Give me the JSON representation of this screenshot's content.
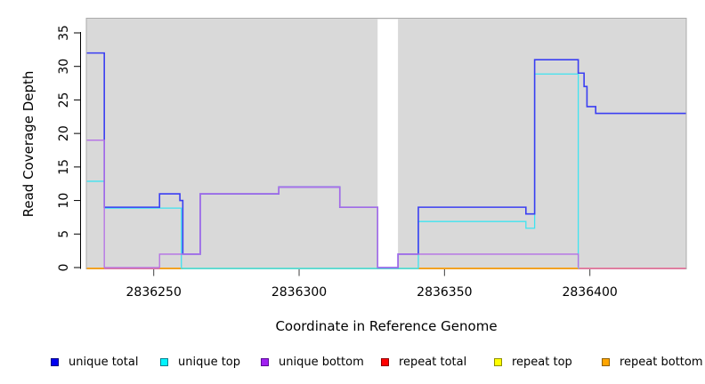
{
  "chart_data": {
    "type": "line",
    "subtype": "step-coverage-plot",
    "title": "",
    "xlabel": "Coordinate in Reference Genome",
    "ylabel": "Read Coverage Depth",
    "xlim": [
      2836227,
      2836433
    ],
    "ylim": [
      0,
      37
    ],
    "xticks": [
      2836250,
      2836300,
      2836350,
      2836400
    ],
    "yticks": [
      0,
      5,
      10,
      15,
      20,
      25,
      30,
      35
    ],
    "plot_background": "#d9d9d9",
    "plot_border_color": "#ababab",
    "masked_region": {
      "from": 2836327,
      "to": 2836334,
      "color": "#ffffff"
    },
    "series": [
      {
        "name": "unique total",
        "color": "#3a3ef2",
        "width": 1.6,
        "steps": [
          [
            2836227,
            32
          ],
          [
            2836233,
            9
          ],
          [
            2836252,
            11
          ],
          [
            2836259,
            10
          ],
          [
            2836260,
            2
          ],
          [
            2836266,
            11
          ],
          [
            2836293,
            12
          ],
          [
            2836314,
            9
          ],
          [
            2836327,
            0
          ],
          [
            2836334,
            2
          ],
          [
            2836341,
            9
          ],
          [
            2836378,
            8
          ],
          [
            2836381,
            31
          ],
          [
            2836396,
            29
          ],
          [
            2836398,
            27
          ],
          [
            2836399,
            24
          ],
          [
            2836402,
            23
          ]
        ],
        "end": 2836433
      },
      {
        "name": "unique top",
        "color": "#3fe3f0",
        "width": 1.3,
        "steps": [
          [
            2836227,
            13
          ],
          [
            2836233,
            9
          ],
          [
            2836259.5,
            0
          ],
          [
            2836341,
            7
          ],
          [
            2836378,
            6
          ],
          [
            2836381,
            29
          ],
          [
            2836396,
            0
          ]
        ],
        "end": 2836396
      },
      {
        "name": "unique bottom",
        "color": "#b46fe6",
        "width": 1.3,
        "steps": [
          [
            2836227,
            19
          ],
          [
            2836233,
            0
          ],
          [
            2836252,
            2
          ],
          [
            2836266,
            11
          ],
          [
            2836293,
            12
          ],
          [
            2836314,
            9
          ],
          [
            2836327,
            0
          ],
          [
            2836334,
            2
          ],
          [
            2836396,
            0
          ]
        ],
        "end": 2836396
      }
    ],
    "zero_line_segments": [
      {
        "series": "repeat bottom",
        "color": "#ff9d00",
        "from": 2836227,
        "to": 2836233
      },
      {
        "series": "repeat total",
        "color": "#e8709a",
        "from": 2836233,
        "to": 2836252
      },
      {
        "series": "repeat bottom",
        "color": "#ff9d00",
        "from": 2836252,
        "to": 2836260
      },
      {
        "series": "repeat top over unique top",
        "color": "#8fd48f",
        "from": 2836260,
        "to": 2836341
      },
      {
        "series": "repeat bottom",
        "color": "#ff9d00",
        "from": 2836341,
        "to": 2836396
      },
      {
        "series": "repeat total",
        "color": "#e8709a",
        "from": 2836396,
        "to": 2836433
      }
    ],
    "grid": false,
    "legend_position": "bottom"
  },
  "axis": {
    "x_title": "Coordinate in Reference Genome",
    "y_title": "Read Coverage Depth"
  },
  "legend": {
    "items": [
      {
        "label": "unique total",
        "fill": "#0000f0",
        "border": "#000080"
      },
      {
        "label": "unique top",
        "fill": "#00f5ff",
        "border": "#007f8f"
      },
      {
        "label": "unique bottom",
        "fill": "#a020f0",
        "border": "#5a0a96"
      },
      {
        "label": "repeat total",
        "fill": "#ff0000",
        "border": "#8f0000"
      },
      {
        "label": "repeat top",
        "fill": "#ffff00",
        "border": "#8f8f00"
      },
      {
        "label": "repeat bottom",
        "fill": "#ffa500",
        "border": "#8f6000"
      }
    ]
  }
}
